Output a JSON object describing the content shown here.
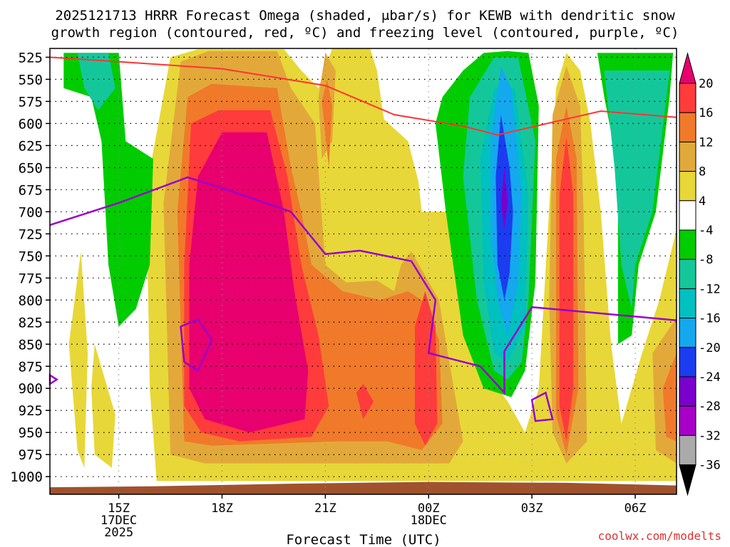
{
  "chart_data": {
    "type": "heatmap",
    "title_line1": "2025121713 HRRR Forecast Omega (shaded, μbar/s) for KEWB with dendritic snow",
    "title_line2": "growth region (contoured, red, ºC) and freezing level (contoured, purple, ºC)",
    "xlabel": "Forecast Time (UTC)",
    "credit": "coolwx.com/modelts",
    "x_range_hours": [
      13.0,
      31.2
    ],
    "y_range_mb": [
      515,
      1020
    ],
    "pressure_levels": [
      525,
      550,
      575,
      600,
      625,
      650,
      675,
      700,
      725,
      750,
      775,
      800,
      825,
      850,
      875,
      900,
      925,
      950,
      975,
      1000
    ],
    "x_ticks": [
      {
        "hour": 15,
        "lines": [
          "15Z",
          "17DEC",
          "2025"
        ]
      },
      {
        "hour": 18,
        "lines": [
          "18Z"
        ]
      },
      {
        "hour": 21,
        "lines": [
          "21Z"
        ]
      },
      {
        "hour": 24,
        "lines": [
          "00Z",
          "18DEC"
        ]
      },
      {
        "hour": 27,
        "lines": [
          "03Z"
        ]
      },
      {
        "hour": 30,
        "lines": [
          "06Z"
        ]
      }
    ],
    "colorbar": {
      "labels": [
        "20",
        "16",
        "12",
        "8",
        "4",
        "-4",
        "-8",
        "-12",
        "-16",
        "-20",
        "-24",
        "-28",
        "-32",
        "-36"
      ],
      "colors": [
        "#e8006e",
        "#ff3b3b",
        "#f07a2a",
        "#e2a93a",
        "#e8d738",
        "#ffffff",
        "#00cc00",
        "#14c79a",
        "#00c0c0",
        "#14a8ef",
        "#1c3cf0",
        "#7a00cc",
        "#a800c8",
        "#aaaaaa",
        "#000000"
      ]
    },
    "legend_colors": {
      "dgz_contour": "#ff3333",
      "freezing_level": "#9a00cc",
      "terrain": "#a0522d"
    },
    "omega_features": [
      {
        "name": "Strong upward motion core (18-20Z)",
        "hours": [
          16.8,
          19.8
        ],
        "mb": [
          590,
          975
        ],
        "value_ubar_s": 20
      },
      {
        "name": "Downward motion core (~02Z)",
        "hours": [
          25.6,
          26.5
        ],
        "mb": [
          580,
          770
        ],
        "value_ubar_s": -28
      },
      {
        "name": "Red upward column (~04Z)",
        "hours": [
          27.6,
          28.2
        ],
        "mb": [
          620,
          960
        ],
        "value_ubar_s": 16
      }
    ],
    "dgz_series": [
      {
        "hour": 13.0,
        "mb": 525
      },
      {
        "hour": 15.0,
        "mb": 530
      },
      {
        "hour": 18.0,
        "mb": 538
      },
      {
        "hour": 21.0,
        "mb": 557
      },
      {
        "hour": 23.0,
        "mb": 590
      },
      {
        "hour": 25.0,
        "mb": 603
      },
      {
        "hour": 26.0,
        "mb": 613
      },
      {
        "hour": 27.0,
        "mb": 604
      },
      {
        "hour": 29.0,
        "mb": 586
      },
      {
        "hour": 31.2,
        "mb": 593
      }
    ],
    "freezing_level_series": [
      {
        "hour": 13.0,
        "mb": 715
      },
      {
        "hour": 15.0,
        "mb": 690
      },
      {
        "hour": 17.0,
        "mb": 661
      },
      {
        "hour": 18.0,
        "mb": 673
      },
      {
        "hour": 20.0,
        "mb": 700
      },
      {
        "hour": 21.0,
        "mb": 748
      },
      {
        "hour": 22.0,
        "mb": 744
      },
      {
        "hour": 23.5,
        "mb": 756
      },
      {
        "hour": 24.2,
        "mb": 800
      },
      {
        "hour": 24.0,
        "mb": 860
      },
      {
        "hour": 25.5,
        "mb": 875
      },
      {
        "hour": 26.2,
        "mb": 905
      },
      {
        "hour": 26.2,
        "mb": 858
      },
      {
        "hour": 27.0,
        "mb": 808
      },
      {
        "hour": 31.2,
        "mb": 823
      }
    ]
  }
}
